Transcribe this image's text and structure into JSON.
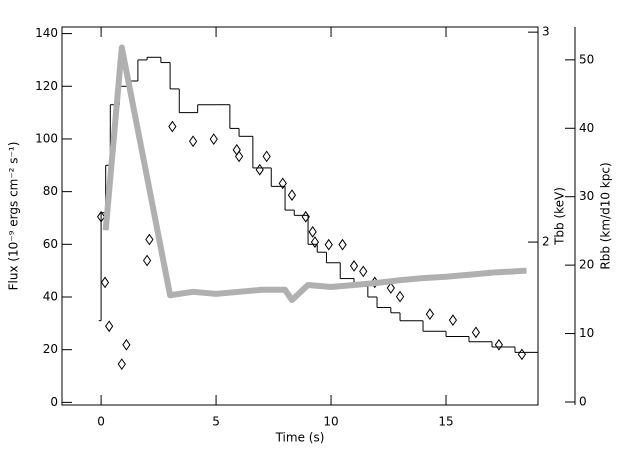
{
  "chart_data": {
    "type": "multi",
    "xlabel": "Time (s)",
    "ylabel": "Flux (10⁻⁹ ergs cm⁻² s⁻¹)",
    "y2label": "Tbb (keV)",
    "y3label": "Rbb (km/d10 kpc)",
    "xlim": [
      -1.7,
      19
    ],
    "xticks": [
      0,
      5,
      10,
      15
    ],
    "ylim": [
      -1,
      142.5
    ],
    "yticks": [
      0,
      20,
      40,
      60,
      80,
      100,
      120,
      140
    ],
    "y2lim": [
      1.46,
      3.03
    ],
    "y2ticks": [
      2,
      3
    ],
    "y2log": true,
    "y3lim": [
      -0.44,
      54.8
    ],
    "y3ticks": [
      0,
      10,
      20,
      30,
      40,
      50
    ],
    "series": [
      {
        "type": "histogram",
        "color": "#000000",
        "bins": [
          -0.1,
          0,
          0.2,
          0.4,
          0.8,
          1.2,
          1.6,
          2.0,
          2.6,
          3.0,
          3.4,
          3.8,
          4.2,
          5.0,
          5.6,
          6.0,
          6.6,
          7.0,
          7.4,
          8.0,
          8.4,
          9.0,
          9.4,
          9.8,
          10.4,
          11.0,
          11.6,
          12.0,
          12.6,
          13.0,
          14.0,
          15.0,
          16.0,
          17.0,
          18.0,
          19.0
        ],
        "values": [
          31,
          72,
          90,
          113,
          120,
          122,
          130,
          131,
          129,
          119,
          110,
          110,
          113,
          113,
          104,
          101,
          89,
          89,
          82,
          73,
          71,
          60,
          57,
          53,
          47,
          44,
          40,
          36,
          34,
          31,
          27,
          25,
          23,
          21,
          19
        ]
      },
      {
        "type": "scatter",
        "axis": "y2",
        "color": "#000000",
        "x": [
          0,
          0.17,
          0.35,
          0.9,
          1.1,
          2.0,
          2.1,
          3.1,
          4.0,
          4.9,
          5.9,
          6.0,
          6.9,
          7.2,
          7.9,
          8.3,
          8.9,
          9.2,
          9.3,
          9.9,
          10.5,
          11.0,
          11.4,
          11.9,
          12.6,
          13.0,
          14.3,
          15.3,
          16.3,
          17.3,
          18.3
        ],
        "values": [
          2.1,
          1.85,
          1.7,
          1.58,
          1.64,
          1.93,
          2.01,
          2.5,
          2.43,
          2.44,
          2.39,
          2.36,
          2.3,
          2.36,
          2.24,
          2.19,
          2.1,
          2.04,
          2.0,
          1.99,
          1.99,
          1.91,
          1.89,
          1.85,
          1.83,
          1.8,
          1.74,
          1.72,
          1.68,
          1.64,
          1.61
        ]
      },
      {
        "type": "line",
        "axis": "y3",
        "color": "#b0b0b0",
        "x": [
          0.2,
          0.9,
          3.0,
          4,
          5,
          6,
          7,
          8,
          8.3,
          9,
          10,
          11,
          12,
          13,
          14,
          15,
          16,
          17,
          18.5
        ],
        "values": [
          25.1,
          51.8,
          15.6,
          16.1,
          15.8,
          16.1,
          16.4,
          16.4,
          14.9,
          17.1,
          16.8,
          17.1,
          17.4,
          17.8,
          18.1,
          18.3,
          18.6,
          18.9,
          19.2
        ]
      }
    ]
  }
}
